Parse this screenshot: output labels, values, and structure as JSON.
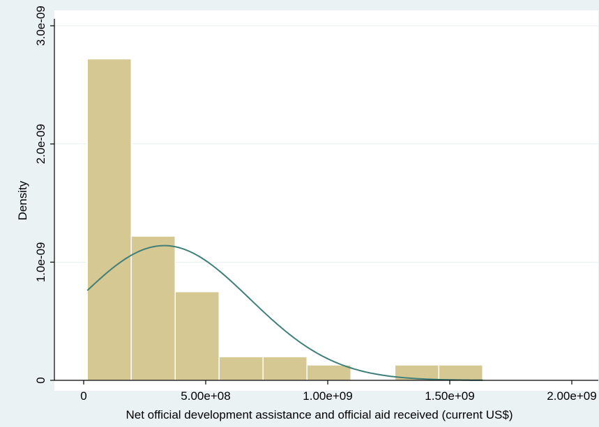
{
  "colors": {
    "outer_background": "#eaf2f3",
    "plot_background": "#ffffff",
    "bar_fill": "#d5c892",
    "bar_stroke": "#ffffff",
    "curve": "#3f7f78",
    "gridline": "#e7eff0",
    "axis": "#000000"
  },
  "chart_data": {
    "type": "bar",
    "subtype": "histogram-with-normal-density",
    "xlabel": "Net official development assistance and official aid received (current US$)",
    "ylabel": "Density",
    "xlim": [
      -120000000,
      2030000000
    ],
    "ylim": [
      0,
      3.05e-09
    ],
    "x_ticks": [
      {
        "value": 0,
        "label": "0"
      },
      {
        "value": 500000000,
        "label": "5.00e+08"
      },
      {
        "value": 1000000000,
        "label": "1.00e+09"
      },
      {
        "value": 1500000000,
        "label": "1.50e+09"
      },
      {
        "value": 2000000000,
        "label": "2.00e+09"
      }
    ],
    "y_ticks": [
      {
        "value": 0,
        "label": "0"
      },
      {
        "value": 1e-09,
        "label": "1.0e-09"
      },
      {
        "value": 2e-09,
        "label": "2.0e-09"
      },
      {
        "value": 3e-09,
        "label": "3.0e-09"
      }
    ],
    "grid": true,
    "bars": [
      {
        "x0": 15000000,
        "x1": 195000000,
        "density": 2.72e-09
      },
      {
        "x0": 195000000,
        "x1": 375000000,
        "density": 1.22e-09
      },
      {
        "x0": 375000000,
        "x1": 555000000,
        "density": 7.5e-10
      },
      {
        "x0": 555000000,
        "x1": 735000000,
        "density": 2e-10
      },
      {
        "x0": 735000000,
        "x1": 915000000,
        "density": 2e-10
      },
      {
        "x0": 915000000,
        "x1": 1095000000,
        "density": 1.3e-10
      },
      {
        "x0": 1095000000,
        "x1": 1275000000,
        "density": 0
      },
      {
        "x0": 1275000000,
        "x1": 1455000000,
        "density": 1.3e-10
      },
      {
        "x0": 1455000000,
        "x1": 1635000000,
        "density": 1.3e-10
      }
    ],
    "normal_curve": {
      "mean": 330000000,
      "sd": 350000000,
      "x_start": 15000000,
      "x_end": 1635000000
    }
  }
}
